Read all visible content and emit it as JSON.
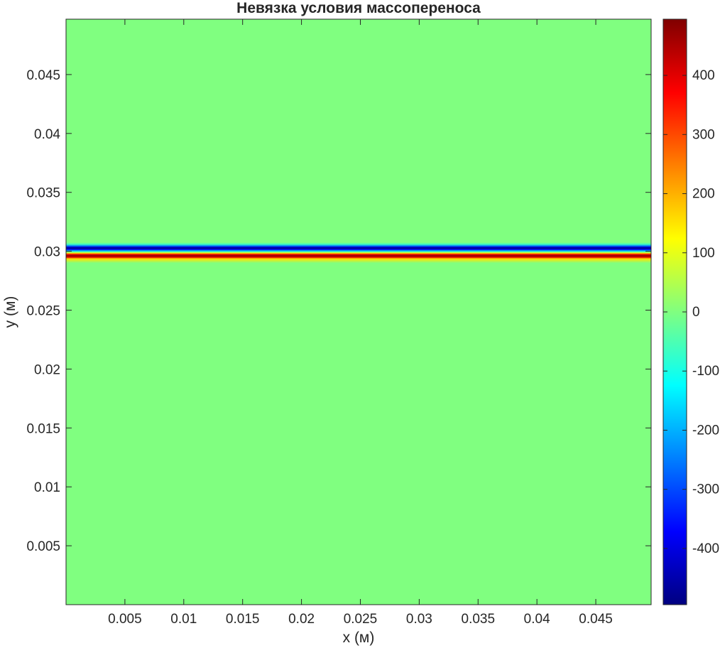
{
  "chart_data": {
    "type": "heatmap",
    "title": "Невязка условия массопереноса",
    "xlabel": "x (м)",
    "ylabel": "y (м)",
    "xlim": [
      0.0,
      0.0497
    ],
    "ylim": [
      0.0,
      0.0497
    ],
    "x_ticks": [
      0.005,
      0.01,
      0.015,
      0.02,
      0.025,
      0.03,
      0.035,
      0.04,
      0.045
    ],
    "x_tick_labels": [
      "0.005",
      "0.01",
      "0.015",
      "0.02",
      "0.025",
      "0.03",
      "0.035",
      "0.04",
      "0.045"
    ],
    "y_ticks": [
      0.005,
      0.01,
      0.015,
      0.02,
      0.025,
      0.03,
      0.035,
      0.04,
      0.045
    ],
    "y_tick_labels": [
      "0.005",
      "0.01",
      "0.015",
      "0.02",
      "0.025",
      "0.03",
      "0.035",
      "0.04",
      "0.045"
    ],
    "colormap": "jet",
    "colorbar": {
      "clim": [
        -495,
        495
      ],
      "ticks": [
        -400,
        -300,
        -200,
        -100,
        0,
        100,
        200,
        300,
        400
      ],
      "tick_labels": [
        "-400",
        "-300",
        "-200",
        "-100",
        "0",
        "100",
        "200",
        "300",
        "400"
      ]
    },
    "background_value": 0,
    "profile_along_y": {
      "description_values_independent_of_x": true,
      "y": [
        0.0,
        0.029,
        0.02935,
        0.0295,
        0.02962,
        0.02975,
        0.02985,
        0.02995,
        0.03005,
        0.03015,
        0.03025,
        0.03035,
        0.03045,
        0.0306,
        0.03075,
        0.0497
      ],
      "value": [
        0,
        0,
        150,
        400,
        480,
        350,
        120,
        -50,
        -200,
        -380,
        -480,
        -420,
        -250,
        -60,
        0,
        0
      ]
    },
    "grid": false
  },
  "colors": {
    "axes_edge": "#262626",
    "tick_text": "#262626",
    "zero_color": "#80ff80"
  }
}
